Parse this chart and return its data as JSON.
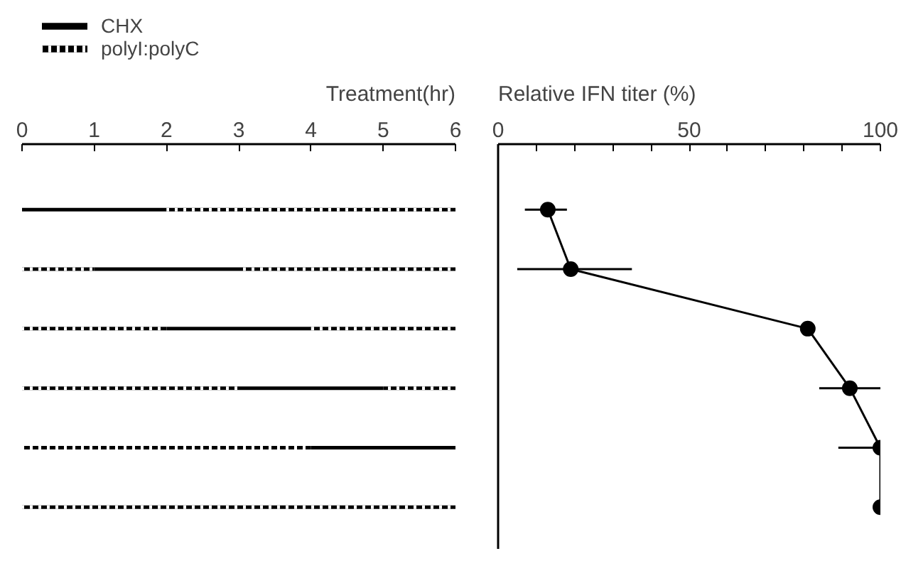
{
  "chart_data": [
    {
      "type": "bar",
      "orientation": "horizontal",
      "stacked": true,
      "title": "Treatment(hr)",
      "categories": [
        null,
        null,
        null,
        null,
        null,
        null
      ],
      "xlim": [
        0,
        6
      ],
      "xticks": [
        0,
        1,
        2,
        3,
        4,
        5,
        6
      ],
      "legend": "top left",
      "tick_labels": "x",
      "series": [
        {
          "name": "polyI:polyC",
          "color": "#000000",
          "line_style": "dashed",
          "values": [
            0,
            1,
            2,
            3,
            4,
            6
          ]
        },
        {
          "name": "CHX",
          "color": "#000000",
          "line_style": "solid",
          "values": [
            2,
            2,
            2,
            2,
            2,
            0
          ]
        },
        {
          "color": "#000000",
          "line_style": "dashed",
          "values": [
            4,
            3,
            2,
            1,
            0,
            0
          ]
        }
      ]
    },
    {
      "type": "line",
      "orientation": "horizontal",
      "title": "Relative IFN titer (%)",
      "categories": [
        null,
        null,
        null,
        null,
        null,
        null
      ],
      "xlim": [
        0,
        100
      ],
      "xticks": [
        0,
        {
          "value": 10,
          "label": null
        },
        {
          "value": 20,
          "label": null
        },
        {
          "value": 30,
          "label": null
        },
        {
          "value": 40,
          "label": null
        },
        50,
        {
          "value": 60,
          "label": null
        },
        {
          "value": 70,
          "label": null
        },
        {
          "value": 80,
          "label": null
        },
        {
          "value": 90,
          "label": null
        },
        100
      ],
      "marker": "circle",
      "tick_labels": "x",
      "series": [
        {
          "color": "#000000",
          "values": [
            13,
            19,
            81,
            92,
            100,
            100
          ],
          "errors": [
            [
              7,
              18
            ],
            [
              5,
              35
            ],
            null,
            [
              84,
              100
            ],
            [
              89,
              100
            ],
            null
          ]
        }
      ]
    }
  ]
}
